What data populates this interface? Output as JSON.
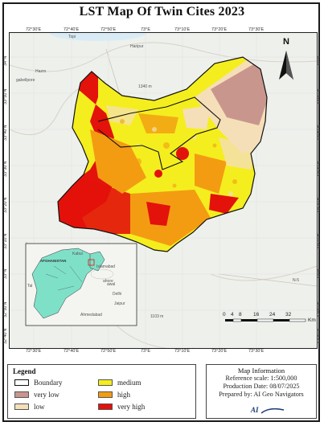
{
  "title": "LST  Map Of Twin Cites 2023",
  "colors": {
    "very_low": "#c9968e",
    "low": "#f5dfb8",
    "medium": "#f4ee1e",
    "high": "#f39c12",
    "very_high": "#e3120b",
    "inset_land": "#7fe0c8"
  },
  "legend": {
    "title": "Legend",
    "items": [
      {
        "label": "Boundary",
        "key": "boundary"
      },
      {
        "label": "very low",
        "key": "very_low"
      },
      {
        "label": "low",
        "key": "low"
      },
      {
        "label": "medium",
        "key": "medium"
      },
      {
        "label": "high",
        "key": "high"
      },
      {
        "label": "very high",
        "key": "very_high"
      }
    ]
  },
  "map_info": {
    "title": "Map Information",
    "scale": "Reference scale: 1:500,000",
    "date": "Production Date: 08/07/2025",
    "author": "Prepared by: AI Geo Navigators",
    "logo_text": "AI"
  },
  "graticule": {
    "top": [
      "72°30'E",
      "72°40'E",
      "72°50'E",
      "73°E",
      "73°10'E",
      "73°20'E",
      "73°30'E"
    ],
    "bottom": [
      "72°30'E",
      "72°40'E",
      "72°50'E",
      "73°E",
      "73°10'E",
      "73°20'E",
      "73°30'E"
    ],
    "left": [
      "34°N",
      "33°50'N",
      "33°40'N",
      "33°30'N",
      "33°20'N",
      "33°10'N",
      "33°N",
      "32°50'N",
      "32°40'N"
    ],
    "right": [
      "34°N",
      "33°50'N",
      "33°40'N",
      "33°30'N",
      "33°20'N",
      "33°10'N",
      "33°N",
      "32°50'N",
      "32°40'N"
    ]
  },
  "places": {
    "topi": "Topi",
    "haripur": "Haripur",
    "hazro": "Hazro",
    "gabellpore": "gabellpore",
    "n5": "N-5",
    "elev1": "1340 m",
    "elev2": "1103 m"
  },
  "inset": {
    "afghanistan": "AFGHANISTAN",
    "kabul": "Kabul",
    "islamabad": "Islamabad",
    "lahore": "ahore",
    "delhi": "Delhi",
    "jaipur": "Jaipur",
    "ahmedabad": "Ahmedabad",
    "tal": "Tal",
    "awal": "awal"
  },
  "north_arrow": "N",
  "scale_bar": {
    "ticks": [
      "0",
      "4",
      "8",
      "16",
      "24",
      "32"
    ],
    "unit": "Km"
  }
}
